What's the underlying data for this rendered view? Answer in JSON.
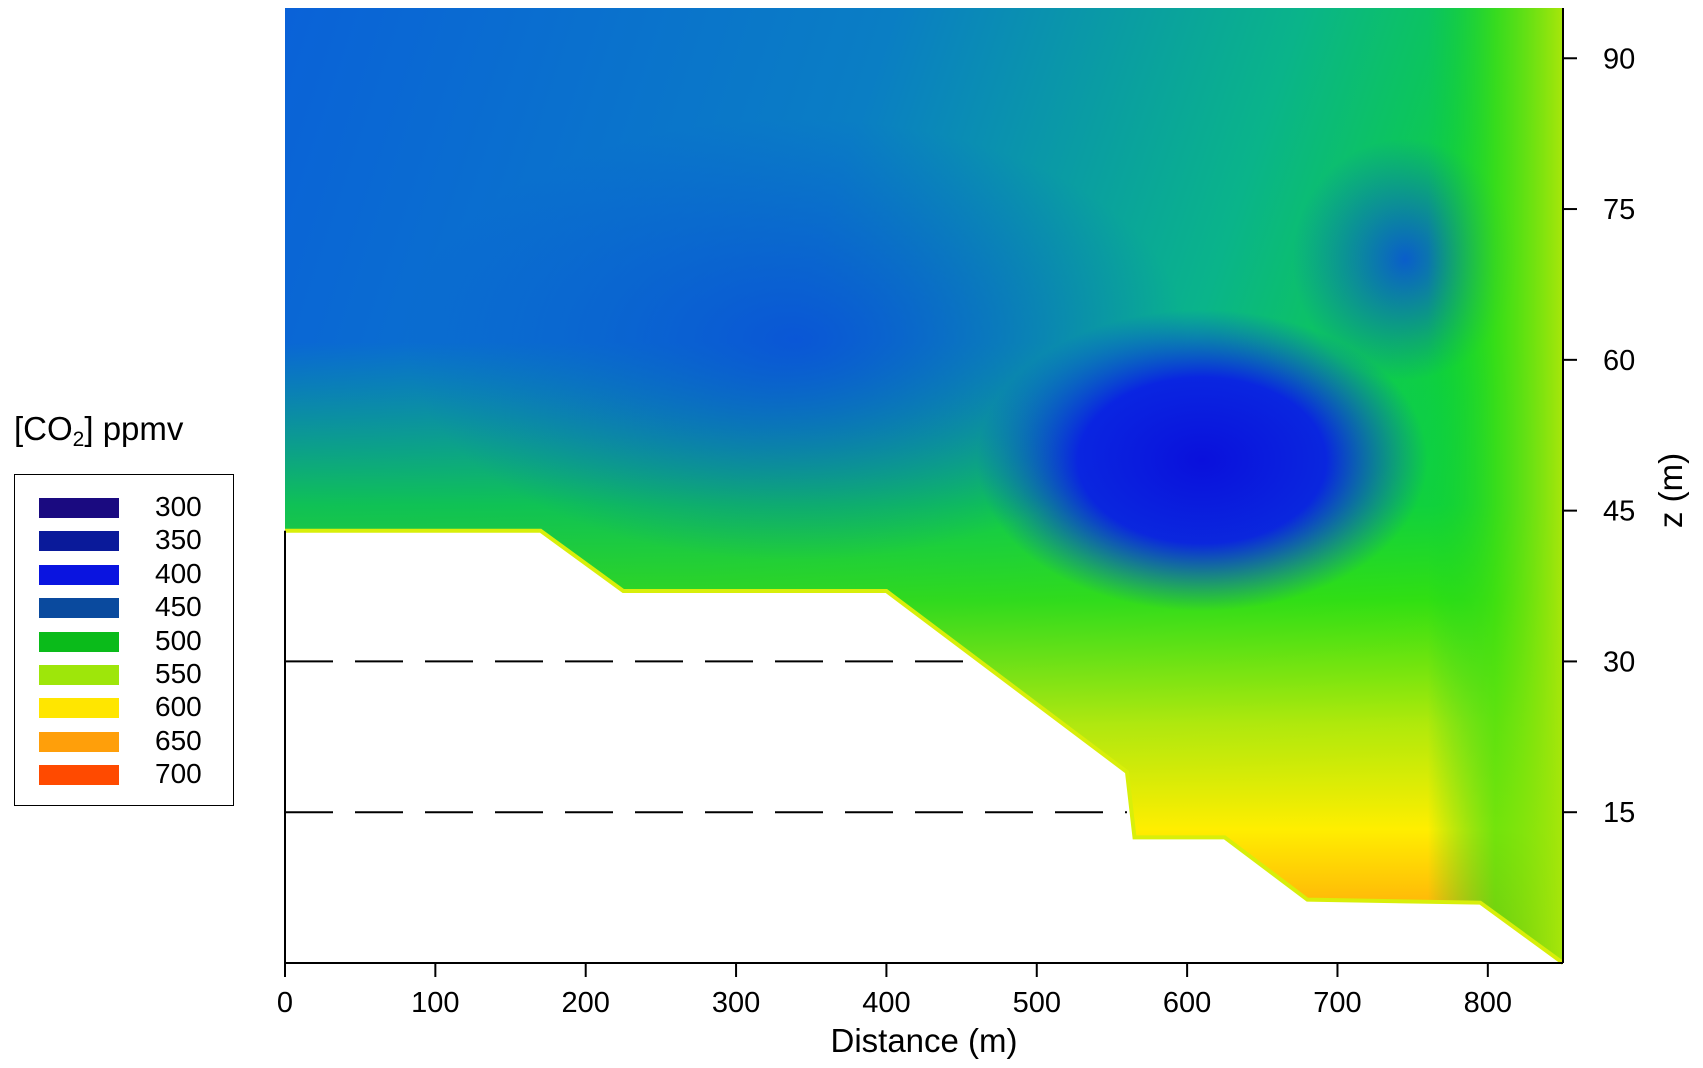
{
  "chart_data": {
    "type": "heatmap",
    "title": "",
    "xlabel": "Distance (m)",
    "ylabel": "z (m)",
    "xlim": [
      0,
      850
    ],
    "ylim": [
      0,
      95
    ],
    "x_ticks": [
      0,
      100,
      200,
      300,
      400,
      500,
      600,
      700,
      800
    ],
    "y_ticks": [
      15,
      30,
      45,
      60,
      75,
      90
    ],
    "y_axis_side": "right",
    "legend": {
      "title_main": "[CO",
      "title_sub": "2",
      "title_suffix": "] ppmv",
      "placement": "left",
      "entries": [
        {
          "label": "300",
          "color": "#1a0a80"
        },
        {
          "label": "350",
          "color": "#0a1a9a"
        },
        {
          "label": "400",
          "color": "#0a14e0"
        },
        {
          "label": "450",
          "color": "#0a4a9e"
        },
        {
          "label": "500",
          "color": "#0abb1a"
        },
        {
          "label": "550",
          "color": "#9ee60a"
        },
        {
          "label": "600",
          "color": "#ffe600"
        },
        {
          "label": "650",
          "color": "#ff9f0a"
        },
        {
          "label": "700",
          "color": "#ff4a00"
        }
      ]
    },
    "reference_lines": [
      {
        "z": 30,
        "style": "dashed",
        "x_range": [
          0,
          455
        ]
      },
      {
        "z": 15,
        "style": "dashed",
        "x_range": [
          0,
          560
        ]
      }
    ],
    "terrain_profile": [
      [
        0,
        43
      ],
      [
        170,
        43
      ],
      [
        225,
        37
      ],
      [
        400,
        37
      ],
      [
        560,
        19
      ],
      [
        565,
        12.5
      ],
      [
        625,
        12.5
      ],
      [
        680,
        6.3
      ],
      [
        795,
        6
      ],
      [
        850,
        0
      ]
    ],
    "field_samples": [
      {
        "x": 50,
        "z": 85,
        "value": 430
      },
      {
        "x": 200,
        "z": 70,
        "value": 425
      },
      {
        "x": 330,
        "z": 62,
        "value": 420
      },
      {
        "x": 100,
        "z": 50,
        "value": 455
      },
      {
        "x": 420,
        "z": 50,
        "value": 450
      },
      {
        "x": 600,
        "z": 50,
        "value": 395
      },
      {
        "x": 650,
        "z": 55,
        "value": 405
      },
      {
        "x": 735,
        "z": 70,
        "value": 430
      },
      {
        "x": 780,
        "z": 75,
        "value": 440
      },
      {
        "x": 700,
        "z": 88,
        "value": 505
      },
      {
        "x": 830,
        "z": 88,
        "value": 525
      },
      {
        "x": 840,
        "z": 60,
        "value": 545
      },
      {
        "x": 830,
        "z": 30,
        "value": 560
      },
      {
        "x": 740,
        "z": 25,
        "value": 465
      },
      {
        "x": 500,
        "z": 32,
        "value": 505
      },
      {
        "x": 300,
        "z": 40,
        "value": 500
      },
      {
        "x": 700,
        "z": 14,
        "value": 600
      },
      {
        "x": 700,
        "z": 7,
        "value": 660
      },
      {
        "x": 820,
        "z": 5,
        "value": 640
      }
    ]
  }
}
